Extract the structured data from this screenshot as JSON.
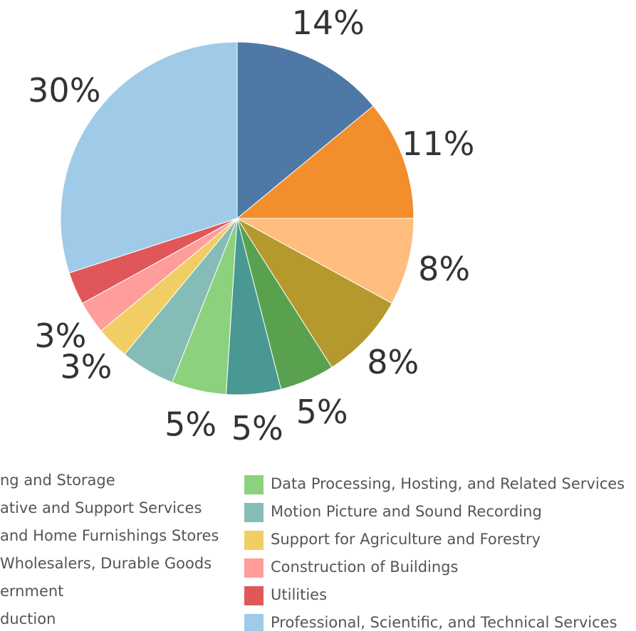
{
  "chart_data": {
    "type": "pie",
    "categories": [
      "ng and Storage",
      "ative and Support Services",
      "and Home Furnishings Stores",
      "Wholesalers, Durable Goods",
      "ernment",
      "duction",
      "Data Processing, Hosting, and Related Services",
      "Motion Picture and Sound Recording",
      "Support for Agriculture and Forestry",
      "Construction of Buildings",
      "Utilities",
      "Professional, Scientific, and Technical Services"
    ],
    "values": [
      14,
      11,
      8,
      8,
      5,
      5,
      5,
      5,
      3,
      3,
      3,
      30
    ],
    "value_labels": [
      "14%",
      "11%",
      "8%",
      "8%",
      "5%",
      "5%",
      "5%",
      null,
      "3%",
      "3%",
      null,
      "30%"
    ],
    "colors": [
      "#4e79a7",
      "#f28e2b",
      "#ffbe7d",
      "#b6992d",
      "#59a14f",
      "#499894",
      "#8cd17d",
      "#86bcb6",
      "#f1ce63",
      "#ff9d9a",
      "#e15759",
      "#a0cbe8"
    ]
  }
}
